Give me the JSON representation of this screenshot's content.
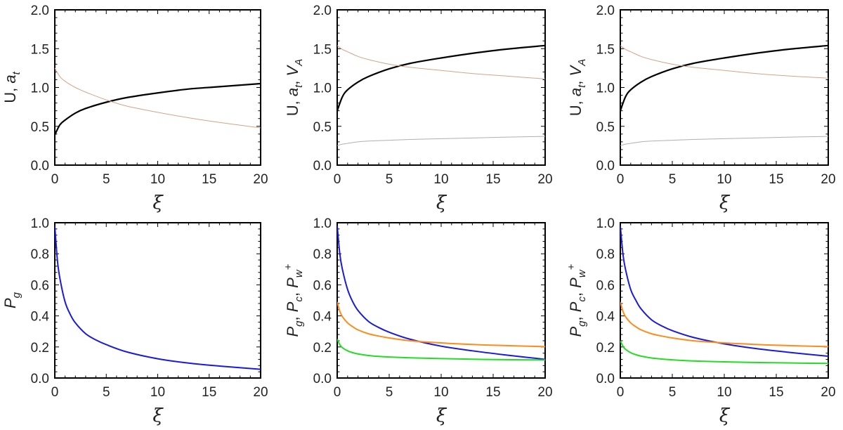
{
  "chart_data": [
    {
      "type": "line",
      "ylabel": "U, a_t",
      "ylabel_parts": [
        {
          "t": "U, "
        },
        {
          "t": "a",
          "i": true
        },
        {
          "t": "t",
          "sub": true,
          "i": true
        }
      ],
      "xlabel": "ξ",
      "xlim": [
        0,
        20
      ],
      "ylim": [
        0,
        2.0
      ],
      "xticks": [
        "0",
        "5",
        "10",
        "15",
        "20"
      ],
      "yticks": [
        "0.0",
        "0.5",
        "1.0",
        "1.5",
        "2.0"
      ],
      "grid": false,
      "series": [
        {
          "color": "#000000",
          "width": 2.2,
          "x": [
            0,
            0.5,
            1,
            2,
            3,
            5,
            7,
            10,
            13,
            16,
            20
          ],
          "y": [
            0.39,
            0.52,
            0.58,
            0.67,
            0.73,
            0.81,
            0.87,
            0.93,
            0.98,
            1.01,
            1.05
          ]
        },
        {
          "color": "#d2a58a",
          "width": 1.0,
          "x": [
            0,
            0.5,
            1,
            2,
            3,
            5,
            7,
            10,
            13,
            16,
            20
          ],
          "y": [
            1.25,
            1.14,
            1.08,
            1.0,
            0.94,
            0.84,
            0.76,
            0.68,
            0.61,
            0.55,
            0.48
          ]
        }
      ]
    },
    {
      "type": "line",
      "ylabel": "U, a_t, V_A",
      "ylabel_parts": [
        {
          "t": "U, "
        },
        {
          "t": "a",
          "i": true
        },
        {
          "t": "t",
          "sub": true,
          "i": true
        },
        {
          "t": ", "
        },
        {
          "t": "V",
          "i": true
        },
        {
          "t": "A",
          "sub": true,
          "i": true
        }
      ],
      "xlabel": "ξ",
      "xlim": [
        0,
        20
      ],
      "ylim": [
        0,
        2.0
      ],
      "xticks": [
        "0",
        "5",
        "10",
        "15",
        "20"
      ],
      "yticks": [
        "0.0",
        "0.5",
        "1.0",
        "1.5",
        "2.0"
      ],
      "grid": false,
      "series": [
        {
          "color": "#000000",
          "width": 2.2,
          "x": [
            0,
            0.5,
            1,
            2,
            3,
            5,
            7,
            10,
            13,
            16,
            20
          ],
          "y": [
            0.7,
            0.88,
            0.97,
            1.07,
            1.14,
            1.24,
            1.31,
            1.38,
            1.44,
            1.49,
            1.54
          ]
        },
        {
          "color": "#d2a58a",
          "width": 1.0,
          "x": [
            0,
            0.5,
            1,
            2,
            3,
            5,
            7,
            10,
            13,
            16,
            20
          ],
          "y": [
            1.54,
            1.49,
            1.46,
            1.4,
            1.36,
            1.3,
            1.26,
            1.22,
            1.18,
            1.15,
            1.11
          ]
        },
        {
          "color": "#b0b0b0",
          "width": 1.0,
          "x": [
            0,
            0.5,
            1,
            2,
            3,
            5,
            7,
            10,
            13,
            16,
            20
          ],
          "y": [
            0.25,
            0.27,
            0.28,
            0.3,
            0.31,
            0.32,
            0.33,
            0.34,
            0.35,
            0.36,
            0.37
          ]
        }
      ]
    },
    {
      "type": "line",
      "ylabel": "U, a_t, V_A",
      "ylabel_parts": [
        {
          "t": "U, "
        },
        {
          "t": "a",
          "i": true
        },
        {
          "t": "t",
          "sub": true,
          "i": true
        },
        {
          "t": ", "
        },
        {
          "t": "V",
          "i": true
        },
        {
          "t": "A",
          "sub": true,
          "i": true
        }
      ],
      "xlabel": "ξ",
      "xlim": [
        0,
        20
      ],
      "ylim": [
        0,
        2.0
      ],
      "xticks": [
        "0",
        "5",
        "10",
        "15",
        "20"
      ],
      "yticks": [
        "0.0",
        "0.5",
        "1.0",
        "1.5",
        "2.0"
      ],
      "grid": false,
      "series": [
        {
          "color": "#000000",
          "width": 2.2,
          "x": [
            0,
            0.5,
            1,
            2,
            3,
            5,
            7,
            10,
            13,
            16,
            20
          ],
          "y": [
            0.7,
            0.88,
            0.97,
            1.07,
            1.14,
            1.24,
            1.31,
            1.38,
            1.44,
            1.49,
            1.54
          ]
        },
        {
          "color": "#d2a58a",
          "width": 1.0,
          "x": [
            0,
            0.5,
            1,
            2,
            3,
            5,
            7,
            10,
            13,
            16,
            20
          ],
          "y": [
            1.54,
            1.49,
            1.46,
            1.4,
            1.36,
            1.3,
            1.26,
            1.22,
            1.18,
            1.15,
            1.12
          ]
        },
        {
          "color": "#b0b0b0",
          "width": 1.0,
          "x": [
            0,
            0.5,
            1,
            2,
            3,
            5,
            7,
            10,
            13,
            16,
            20
          ],
          "y": [
            0.25,
            0.27,
            0.28,
            0.3,
            0.31,
            0.32,
            0.33,
            0.34,
            0.35,
            0.36,
            0.37
          ]
        }
      ]
    },
    {
      "type": "line",
      "ylabel": "P_g",
      "ylabel_parts": [
        {
          "t": "P",
          "i": true
        },
        {
          "t": "g",
          "sub": true,
          "i": true
        }
      ],
      "xlabel": "ξ",
      "xlim": [
        0,
        20
      ],
      "ylim": [
        0,
        1.0
      ],
      "xticks": [
        "0",
        "5",
        "10",
        "15",
        "20"
      ],
      "yticks": [
        "0.0",
        "0.2",
        "0.4",
        "0.6",
        "0.8",
        "1.0"
      ],
      "grid": false,
      "series": [
        {
          "color": "#1a1adf",
          "width": 2.0,
          "x": [
            0,
            0.25,
            0.5,
            1,
            1.5,
            2,
            3,
            4,
            5,
            7,
            10,
            13,
            16,
            20
          ],
          "y": [
            0.98,
            0.76,
            0.64,
            0.49,
            0.41,
            0.355,
            0.285,
            0.245,
            0.215,
            0.168,
            0.124,
            0.096,
            0.077,
            0.056
          ]
        }
      ]
    },
    {
      "type": "line",
      "ylabel": "P_g, P_c, P_w^+",
      "ylabel_parts": [
        {
          "t": "P",
          "i": true
        },
        {
          "t": "g",
          "sub": true,
          "i": true
        },
        {
          "t": ", "
        },
        {
          "t": "P",
          "i": true
        },
        {
          "t": "c",
          "sub": true,
          "i": true
        },
        {
          "t": ", "
        },
        {
          "t": "P",
          "i": true
        },
        {
          "t": "w",
          "sub": true,
          "i": true
        },
        {
          "t": "+",
          "sup": true
        }
      ],
      "xlabel": "ξ",
      "xlim": [
        0,
        20
      ],
      "ylim": [
        0,
        1.0
      ],
      "xticks": [
        "0",
        "5",
        "10",
        "15",
        "20"
      ],
      "yticks": [
        "0.0",
        "0.2",
        "0.4",
        "0.6",
        "0.8",
        "1.0"
      ],
      "grid": false,
      "series": [
        {
          "color": "#1a1adf",
          "width": 2.0,
          "x": [
            0,
            0.25,
            0.5,
            1,
            1.5,
            2,
            3,
            4,
            5,
            7,
            10,
            13,
            16,
            20
          ],
          "y": [
            0.98,
            0.8,
            0.7,
            0.57,
            0.49,
            0.435,
            0.365,
            0.325,
            0.295,
            0.25,
            0.205,
            0.175,
            0.15,
            0.12
          ]
        },
        {
          "color": "#ff8c1a",
          "width": 2.0,
          "x": [
            0,
            0.25,
            0.5,
            1,
            1.5,
            2,
            3,
            4,
            5,
            7,
            10,
            13,
            16,
            20
          ],
          "y": [
            0.49,
            0.43,
            0.395,
            0.355,
            0.33,
            0.31,
            0.285,
            0.27,
            0.258,
            0.24,
            0.226,
            0.216,
            0.209,
            0.202
          ]
        },
        {
          "color": "#22dd22",
          "width": 2.0,
          "x": [
            0,
            0.25,
            0.5,
            1,
            1.5,
            2,
            3,
            4,
            5,
            7,
            10,
            13,
            16,
            20
          ],
          "y": [
            0.25,
            0.215,
            0.195,
            0.175,
            0.163,
            0.155,
            0.145,
            0.139,
            0.135,
            0.13,
            0.125,
            0.121,
            0.118,
            0.116
          ]
        }
      ]
    },
    {
      "type": "line",
      "ylabel": "P_g, P_c, P_w^+",
      "ylabel_parts": [
        {
          "t": "P",
          "i": true
        },
        {
          "t": "g",
          "sub": true,
          "i": true
        },
        {
          "t": ", "
        },
        {
          "t": "P",
          "i": true
        },
        {
          "t": "c",
          "sub": true,
          "i": true
        },
        {
          "t": ", "
        },
        {
          "t": "P",
          "i": true
        },
        {
          "t": "w",
          "sub": true,
          "i": true
        },
        {
          "t": "+",
          "sup": true
        }
      ],
      "xlabel": "ξ",
      "xlim": [
        0,
        20
      ],
      "ylim": [
        0,
        1.0
      ],
      "xticks": [
        "0",
        "5",
        "10",
        "15",
        "20"
      ],
      "yticks": [
        "0.0",
        "0.2",
        "0.4",
        "0.6",
        "0.8",
        "1.0"
      ],
      "grid": false,
      "series": [
        {
          "color": "#1a1adf",
          "width": 2.0,
          "x": [
            0,
            0.25,
            0.5,
            1,
            1.5,
            2,
            3,
            4,
            5,
            7,
            10,
            13,
            16,
            20
          ],
          "y": [
            0.98,
            0.8,
            0.7,
            0.57,
            0.5,
            0.445,
            0.375,
            0.335,
            0.305,
            0.262,
            0.22,
            0.19,
            0.167,
            0.14
          ]
        },
        {
          "color": "#ff8c1a",
          "width": 2.0,
          "x": [
            0,
            0.25,
            0.5,
            1,
            1.5,
            2,
            3,
            4,
            5,
            7,
            10,
            13,
            16,
            20
          ],
          "y": [
            0.49,
            0.43,
            0.395,
            0.355,
            0.33,
            0.31,
            0.285,
            0.27,
            0.258,
            0.24,
            0.226,
            0.216,
            0.209,
            0.202
          ]
        },
        {
          "color": "#22dd22",
          "width": 2.0,
          "x": [
            0,
            0.25,
            0.5,
            1,
            1.5,
            2,
            3,
            4,
            5,
            7,
            10,
            13,
            16,
            20
          ],
          "y": [
            0.24,
            0.205,
            0.185,
            0.163,
            0.15,
            0.141,
            0.129,
            0.122,
            0.117,
            0.11,
            0.104,
            0.1,
            0.097,
            0.094
          ]
        }
      ]
    }
  ]
}
